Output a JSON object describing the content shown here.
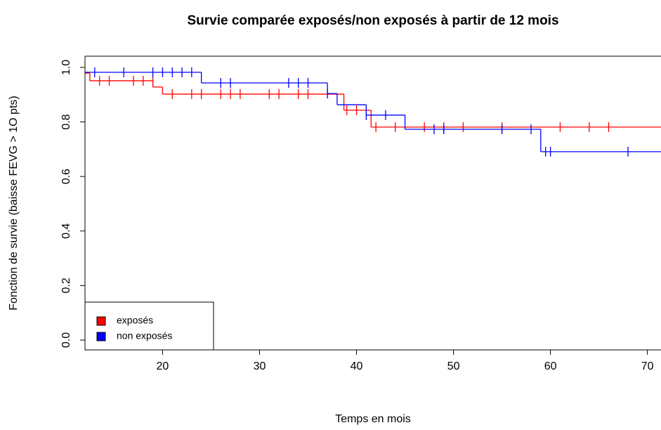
{
  "chart_data": {
    "type": "survival",
    "title": "Survie comparée exposés/non exposés à partir de 12 mois",
    "x_label": "Temps en mois",
    "y_label": "Fonction de survie (baisse FEVG > 1O pts)",
    "xlim": [
      12,
      71.4
    ],
    "ylim": [
      -0.036,
      1.041
    ],
    "xticks": [
      20,
      30,
      40,
      50,
      60,
      70
    ],
    "yticks": [
      {
        "value": 0,
        "label": "0.0"
      },
      0.2,
      0.4,
      0.6,
      0.8,
      {
        "value": 1,
        "label": "1.0"
      }
    ],
    "legend": "bottomleft",
    "series": [
      {
        "name": "exposés",
        "color": "#ff0000",
        "x": [
          12,
          12.5,
          19,
          20,
          38.7,
          41.5
        ],
        "values": [
          0.979,
          0.951,
          0.928,
          0.902,
          0.843,
          0.781
        ],
        "censored_x": [
          13.5,
          14.5,
          17,
          18,
          19,
          21,
          23,
          24,
          26,
          27,
          28,
          31,
          32,
          34,
          35,
          39,
          40,
          42,
          44,
          47,
          49,
          51,
          55,
          61,
          64,
          66
        ],
        "censored_values": [
          0.951,
          0.951,
          0.951,
          0.951,
          0.951,
          0.902,
          0.902,
          0.902,
          0.902,
          0.902,
          0.902,
          0.902,
          0.902,
          0.902,
          0.902,
          0.843,
          0.843,
          0.781,
          0.781,
          0.781,
          0.781,
          0.781,
          0.781,
          0.781,
          0.781,
          0.781
        ]
      },
      {
        "name": "non exposés",
        "color": "#0000ff",
        "x": [
          12,
          24,
          37,
          38,
          41,
          45,
          59
        ],
        "values": [
          0.982,
          0.943,
          0.904,
          0.863,
          0.825,
          0.773,
          0.691
        ],
        "censored_x": [
          13,
          16,
          19,
          20,
          21,
          22,
          23,
          26,
          27,
          33,
          34,
          35,
          37,
          41,
          43,
          48,
          49,
          55,
          58,
          59.5,
          60,
          68
        ],
        "censored_values": [
          0.982,
          0.982,
          0.982,
          0.982,
          0.982,
          0.982,
          0.982,
          0.943,
          0.943,
          0.943,
          0.943,
          0.943,
          0.904,
          0.825,
          0.825,
          0.773,
          0.773,
          0.773,
          0.773,
          0.691,
          0.691,
          0.691
        ]
      }
    ]
  }
}
